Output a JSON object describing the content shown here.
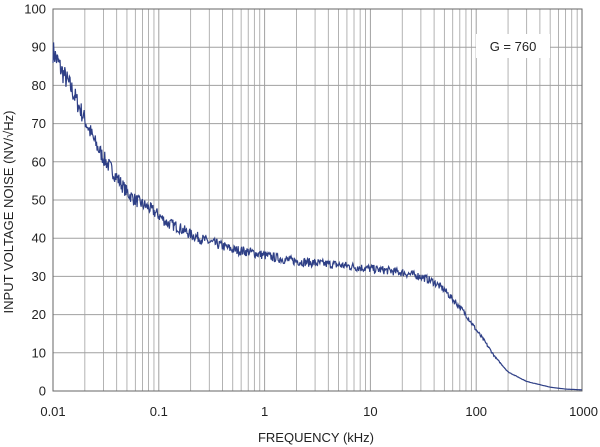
{
  "chart_data": {
    "type": "line",
    "xlabel": "FREQUENCY (kHz)",
    "ylabel": "INPUT VOLTAGE NOISE (NV/√Hz)",
    "x_scale": "log",
    "xlim": [
      0.01,
      1000
    ],
    "ylim": [
      0,
      100
    ],
    "x_ticks": [
      0.01,
      0.1,
      1,
      10,
      100,
      1000
    ],
    "x_tick_labels": [
      "0.01",
      "0.1",
      "1",
      "10",
      "100",
      "1000"
    ],
    "y_ticks": [
      0,
      10,
      20,
      30,
      40,
      50,
      60,
      70,
      80,
      90,
      100
    ],
    "y_tick_labels": [
      "0",
      "10",
      "20",
      "30",
      "40",
      "50",
      "60",
      "70",
      "80",
      "90",
      "100"
    ],
    "grid": true,
    "annotation": "G = 760",
    "annotation_placement": "top-right",
    "colors": {
      "line": "#2e3f86",
      "grid": "#a0a0a0",
      "frame": "#666666"
    },
    "series": [
      {
        "x": [
          0.01,
          0.012,
          0.015,
          0.02,
          0.025,
          0.03,
          0.04,
          0.05,
          0.06,
          0.08,
          0.1,
          0.12,
          0.15,
          0.2,
          0.3,
          0.4,
          0.5,
          0.7,
          1,
          1.5,
          2,
          3,
          5,
          7,
          10,
          15,
          20,
          30,
          40,
          50,
          60,
          70,
          80,
          100,
          120,
          150,
          200,
          300,
          500,
          700,
          1000
        ],
        "values": [
          89,
          84,
          79,
          71,
          65,
          61,
          56,
          52,
          50,
          48,
          46,
          44,
          43,
          41,
          39,
          38,
          37,
          36.5,
          35.5,
          34.5,
          34,
          33.5,
          33,
          32.5,
          32,
          31.5,
          31,
          30,
          28.5,
          26.5,
          24,
          22,
          20,
          16,
          13,
          9,
          5,
          2.5,
          1,
          0.5,
          0.3
        ]
      }
    ]
  }
}
